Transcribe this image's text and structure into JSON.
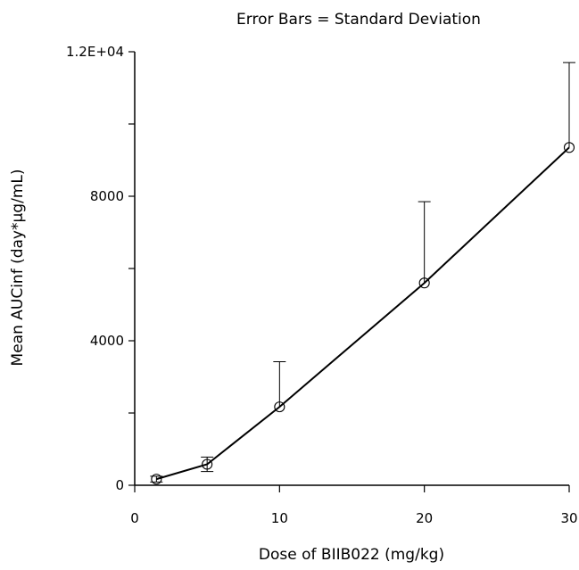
{
  "chart_data": {
    "type": "line",
    "title": "Error Bars = Standard Deviation",
    "xlabel": "Dose of BIIB022 (mg/kg)",
    "ylabel": "Mean AUCinf (day*µg/mL)",
    "xlim": [
      0,
      30
    ],
    "ylim": [
      0,
      12000
    ],
    "x_ticks": [
      0,
      10,
      20,
      30
    ],
    "x_tick_labels": [
      "0",
      "10",
      "20",
      "30"
    ],
    "y_ticks": [
      0,
      2000,
      4000,
      6000,
      8000,
      10000,
      12000
    ],
    "y_tick_labels": [
      "0",
      "",
      "4000",
      "",
      "8000",
      "",
      "1.2E+04"
    ],
    "grid": false,
    "series": [
      {
        "x": [
          1.5,
          5,
          10,
          20,
          30
        ],
        "y": [
          170,
          580,
          2170,
          5600,
          9350
        ],
        "error_upper": [
          80,
          200,
          1250,
          2250,
          2350
        ],
        "error_lower": [
          80,
          200,
          0,
          0,
          0
        ],
        "marker": "open-circle",
        "color": "#000000"
      }
    ]
  }
}
